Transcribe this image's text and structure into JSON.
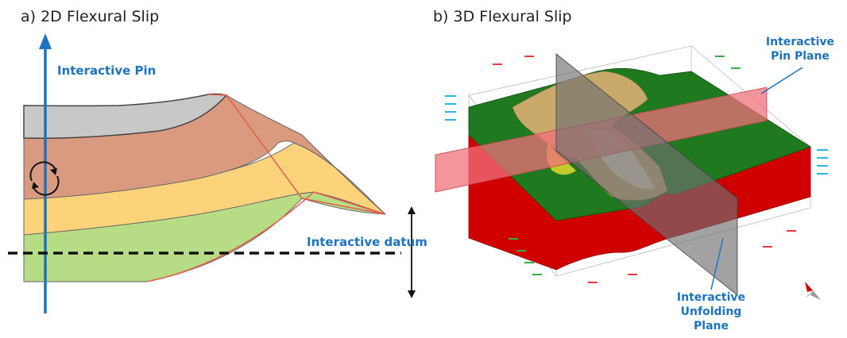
{
  "panel_a": {
    "title": "a) 2D Flexural Slip",
    "pin_label": "Interactive Pin",
    "datum_label": "Interactive datum"
  },
  "panel_b": {
    "title": "b) 3D Flexural Slip",
    "pin_plane_label_line1": "Interactive",
    "pin_plane_label_line2": "Pin Plane",
    "unfolding_label_line1": "Interactive",
    "unfolding_label_line2": "Unfolding",
    "unfolding_label_line3": "Plane"
  },
  "colors": {
    "callout_blue": "#1e73be",
    "layer_gray": "#c8c8c8",
    "layer_brown": "#d99a80",
    "layer_orange": "#fcd37a",
    "layer_green": "#b7dc86",
    "surface_green": "#1f7a1f",
    "pin_plane": "#f0707a",
    "unfolding_plane": "#707070"
  },
  "icons": [
    "rotate-arrows-icon",
    "double-arrow-icon",
    "compass-icon"
  ]
}
